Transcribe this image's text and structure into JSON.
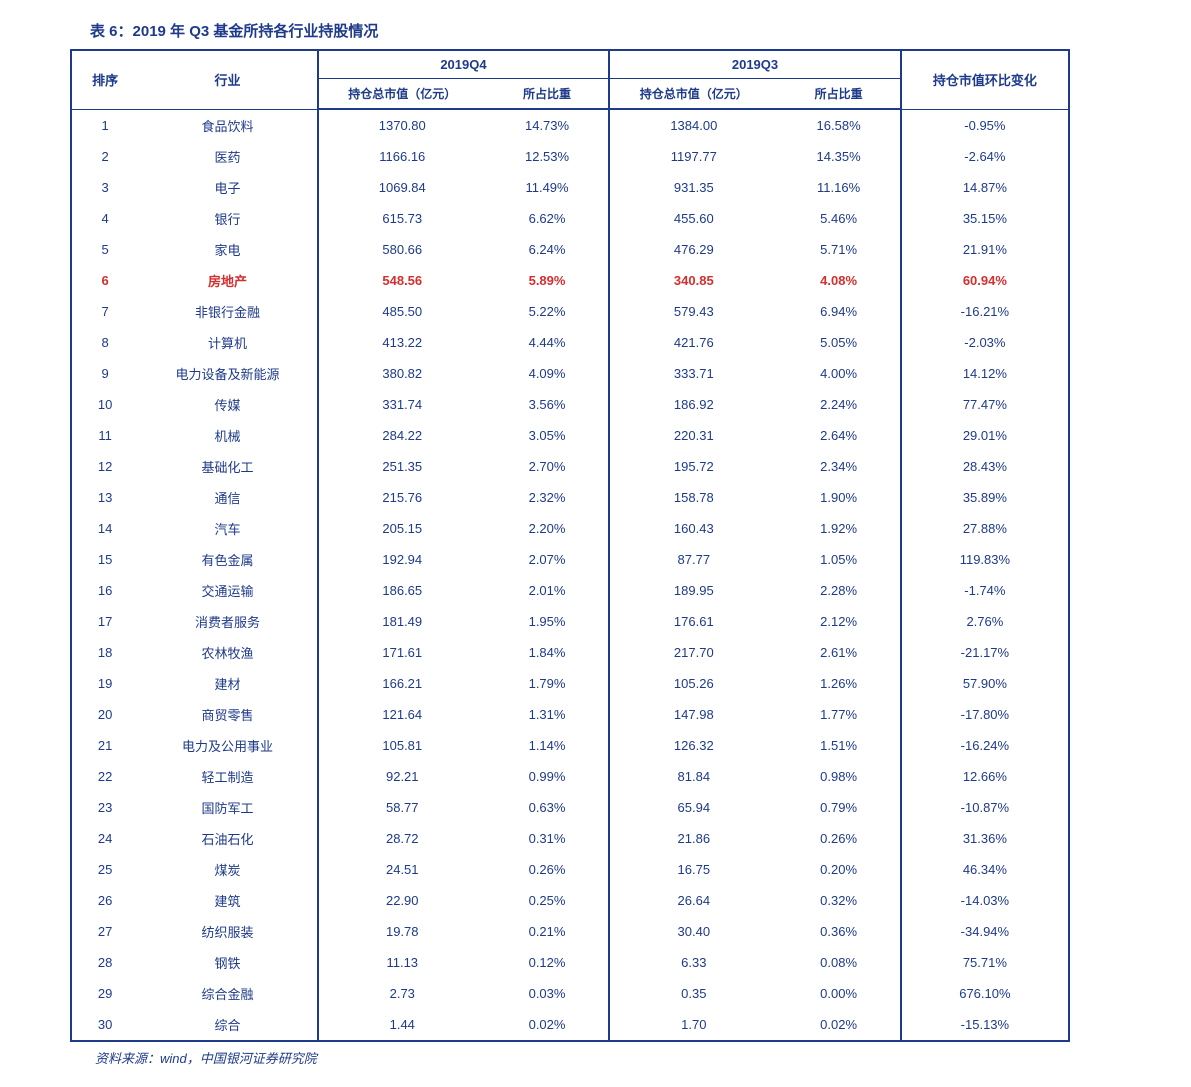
{
  "title": "表 6：2019 年 Q3 基金所持各行业持股情况",
  "source": "资料来源：wind，中国银河证券研究院",
  "colors": {
    "primary": "#1e3a8a",
    "highlight": "#d32f2f",
    "background": "#ffffff"
  },
  "table": {
    "header": {
      "rank": "排序",
      "industry": "行业",
      "q4_group": "2019Q4",
      "q3_group": "2019Q3",
      "change": "持仓市值环比变化",
      "value_label": "持仓总市值（亿元）",
      "weight_label": "所占比重"
    },
    "highlight_row_index": 5,
    "rows": [
      {
        "rank": "1",
        "industry": "食品饮料",
        "q4v": "1370.80",
        "q4p": "14.73%",
        "q3v": "1384.00",
        "q3p": "16.58%",
        "chg": "-0.95%"
      },
      {
        "rank": "2",
        "industry": "医药",
        "q4v": "1166.16",
        "q4p": "12.53%",
        "q3v": "1197.77",
        "q3p": "14.35%",
        "chg": "-2.64%"
      },
      {
        "rank": "3",
        "industry": "电子",
        "q4v": "1069.84",
        "q4p": "11.49%",
        "q3v": "931.35",
        "q3p": "11.16%",
        "chg": "14.87%"
      },
      {
        "rank": "4",
        "industry": "银行",
        "q4v": "615.73",
        "q4p": "6.62%",
        "q3v": "455.60",
        "q3p": "5.46%",
        "chg": "35.15%"
      },
      {
        "rank": "5",
        "industry": "家电",
        "q4v": "580.66",
        "q4p": "6.24%",
        "q3v": "476.29",
        "q3p": "5.71%",
        "chg": "21.91%"
      },
      {
        "rank": "6",
        "industry": "房地产",
        "q4v": "548.56",
        "q4p": "5.89%",
        "q3v": "340.85",
        "q3p": "4.08%",
        "chg": "60.94%"
      },
      {
        "rank": "7",
        "industry": "非银行金融",
        "q4v": "485.50",
        "q4p": "5.22%",
        "q3v": "579.43",
        "q3p": "6.94%",
        "chg": "-16.21%"
      },
      {
        "rank": "8",
        "industry": "计算机",
        "q4v": "413.22",
        "q4p": "4.44%",
        "q3v": "421.76",
        "q3p": "5.05%",
        "chg": "-2.03%"
      },
      {
        "rank": "9",
        "industry": "电力设备及新能源",
        "q4v": "380.82",
        "q4p": "4.09%",
        "q3v": "333.71",
        "q3p": "4.00%",
        "chg": "14.12%"
      },
      {
        "rank": "10",
        "industry": "传媒",
        "q4v": "331.74",
        "q4p": "3.56%",
        "q3v": "186.92",
        "q3p": "2.24%",
        "chg": "77.47%"
      },
      {
        "rank": "11",
        "industry": "机械",
        "q4v": "284.22",
        "q4p": "3.05%",
        "q3v": "220.31",
        "q3p": "2.64%",
        "chg": "29.01%"
      },
      {
        "rank": "12",
        "industry": "基础化工",
        "q4v": "251.35",
        "q4p": "2.70%",
        "q3v": "195.72",
        "q3p": "2.34%",
        "chg": "28.43%"
      },
      {
        "rank": "13",
        "industry": "通信",
        "q4v": "215.76",
        "q4p": "2.32%",
        "q3v": "158.78",
        "q3p": "1.90%",
        "chg": "35.89%"
      },
      {
        "rank": "14",
        "industry": "汽车",
        "q4v": "205.15",
        "q4p": "2.20%",
        "q3v": "160.43",
        "q3p": "1.92%",
        "chg": "27.88%"
      },
      {
        "rank": "15",
        "industry": "有色金属",
        "q4v": "192.94",
        "q4p": "2.07%",
        "q3v": "87.77",
        "q3p": "1.05%",
        "chg": "119.83%"
      },
      {
        "rank": "16",
        "industry": "交通运输",
        "q4v": "186.65",
        "q4p": "2.01%",
        "q3v": "189.95",
        "q3p": "2.28%",
        "chg": "-1.74%"
      },
      {
        "rank": "17",
        "industry": "消费者服务",
        "q4v": "181.49",
        "q4p": "1.95%",
        "q3v": "176.61",
        "q3p": "2.12%",
        "chg": "2.76%"
      },
      {
        "rank": "18",
        "industry": "农林牧渔",
        "q4v": "171.61",
        "q4p": "1.84%",
        "q3v": "217.70",
        "q3p": "2.61%",
        "chg": "-21.17%"
      },
      {
        "rank": "19",
        "industry": "建材",
        "q4v": "166.21",
        "q4p": "1.79%",
        "q3v": "105.26",
        "q3p": "1.26%",
        "chg": "57.90%"
      },
      {
        "rank": "20",
        "industry": "商贸零售",
        "q4v": "121.64",
        "q4p": "1.31%",
        "q3v": "147.98",
        "q3p": "1.77%",
        "chg": "-17.80%"
      },
      {
        "rank": "21",
        "industry": "电力及公用事业",
        "q4v": "105.81",
        "q4p": "1.14%",
        "q3v": "126.32",
        "q3p": "1.51%",
        "chg": "-16.24%"
      },
      {
        "rank": "22",
        "industry": "轻工制造",
        "q4v": "92.21",
        "q4p": "0.99%",
        "q3v": "81.84",
        "q3p": "0.98%",
        "chg": "12.66%"
      },
      {
        "rank": "23",
        "industry": "国防军工",
        "q4v": "58.77",
        "q4p": "0.63%",
        "q3v": "65.94",
        "q3p": "0.79%",
        "chg": "-10.87%"
      },
      {
        "rank": "24",
        "industry": "石油石化",
        "q4v": "28.72",
        "q4p": "0.31%",
        "q3v": "21.86",
        "q3p": "0.26%",
        "chg": "31.36%"
      },
      {
        "rank": "25",
        "industry": "煤炭",
        "q4v": "24.51",
        "q4p": "0.26%",
        "q3v": "16.75",
        "q3p": "0.20%",
        "chg": "46.34%"
      },
      {
        "rank": "26",
        "industry": "建筑",
        "q4v": "22.90",
        "q4p": "0.25%",
        "q3v": "26.64",
        "q3p": "0.32%",
        "chg": "-14.03%"
      },
      {
        "rank": "27",
        "industry": "纺织服装",
        "q4v": "19.78",
        "q4p": "0.21%",
        "q3v": "30.40",
        "q3p": "0.36%",
        "chg": "-34.94%"
      },
      {
        "rank": "28",
        "industry": "钢铁",
        "q4v": "11.13",
        "q4p": "0.12%",
        "q3v": "6.33",
        "q3p": "0.08%",
        "chg": "75.71%"
      },
      {
        "rank": "29",
        "industry": "综合金融",
        "q4v": "2.73",
        "q4p": "0.03%",
        "q3v": "0.35",
        "q3p": "0.00%",
        "chg": "676.10%"
      },
      {
        "rank": "30",
        "industry": "综合",
        "q4v": "1.44",
        "q4p": "0.02%",
        "q3v": "1.70",
        "q3p": "0.02%",
        "chg": "-15.13%"
      }
    ]
  }
}
